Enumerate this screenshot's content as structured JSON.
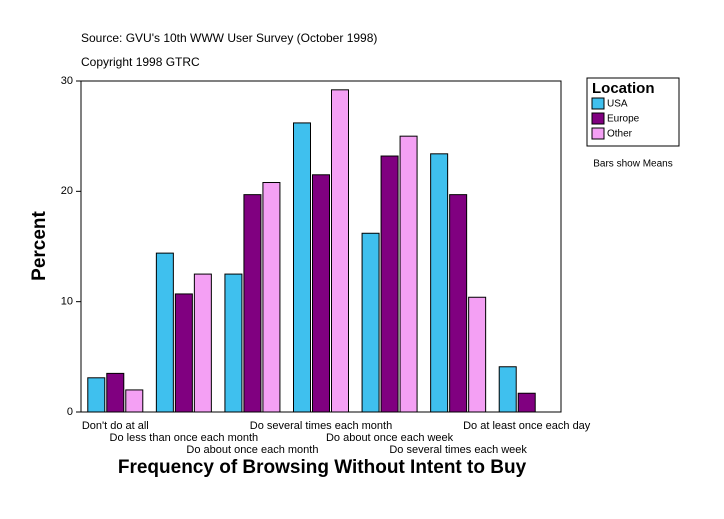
{
  "chart_data": {
    "type": "bar",
    "subtitle": "Source: GVU's 10th WWW User Survey (October 1998)",
    "copyright": "Copyright 1998 GTRC",
    "x_label": "Frequency of Browsing Without Intent to Buy",
    "y_label": "Percent",
    "note": "Bars show Means",
    "legend_title": "Location",
    "categories": [
      "Don't do at all",
      "Do less than once each month",
      "Do about once each month",
      "Do several times each month",
      "Do about once each week",
      "Do several times each week",
      "Do at least once each day"
    ],
    "series": [
      {
        "name": "USA",
        "color": "#3fc0ee",
        "values": [
          3.1,
          14.4,
          12.5,
          26.2,
          16.2,
          23.4,
          4.1
        ]
      },
      {
        "name": "Europe",
        "color": "#800080",
        "values": [
          3.5,
          10.7,
          19.7,
          21.5,
          23.2,
          19.7,
          1.7
        ]
      },
      {
        "name": "Other",
        "color": "#f4a0f4",
        "values": [
          2.0,
          12.5,
          20.8,
          29.2,
          25.0,
          10.4,
          null
        ]
      }
    ],
    "ylim": [
      0,
      30
    ],
    "yticks": [
      0,
      10,
      20,
      30
    ]
  }
}
